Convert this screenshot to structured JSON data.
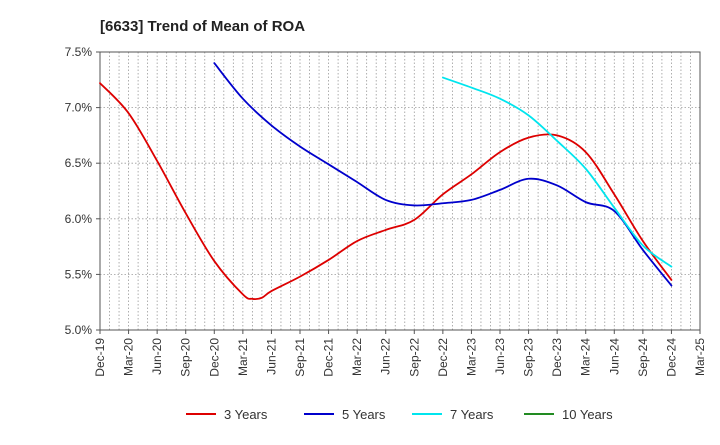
{
  "chart_data": {
    "type": "line",
    "title": "[6633]  Trend of Mean of ROA",
    "xlabel": "",
    "ylabel": "",
    "ylim": [
      5.0,
      7.5
    ],
    "yticks": [
      5.0,
      5.5,
      6.0,
      6.5,
      7.0,
      7.5
    ],
    "ytick_labels": [
      "5.0%",
      "5.5%",
      "6.0%",
      "6.5%",
      "7.0%",
      "7.5%"
    ],
    "x_labels": [
      "Dec-19",
      "Mar-20",
      "Jun-20",
      "Sep-20",
      "Dec-20",
      "Mar-21",
      "Jun-21",
      "Sep-21",
      "Dec-21",
      "Mar-22",
      "Jun-22",
      "Sep-22",
      "Dec-22",
      "Mar-23",
      "Jun-23",
      "Sep-23",
      "Dec-23",
      "Mar-24",
      "Jun-24",
      "Sep-24",
      "Dec-24",
      "Mar-25"
    ],
    "grid": true,
    "grid_style": "dotted",
    "legend_position": "bottom",
    "series": [
      {
        "name": "3 Years",
        "color": "#dd0000",
        "points": [
          [
            "Dec-19",
            7.22
          ],
          [
            "Mar-20",
            6.95
          ],
          [
            "Jun-20",
            6.52
          ],
          [
            "Sep-20",
            6.05
          ],
          [
            "Dec-20",
            5.62
          ],
          [
            "Mar-21",
            5.32
          ],
          [
            "Apr-21",
            5.28
          ],
          [
            "May-21",
            5.29
          ],
          [
            "Jun-21",
            5.35
          ],
          [
            "Sep-21",
            5.48
          ],
          [
            "Dec-21",
            5.63
          ],
          [
            "Mar-22",
            5.8
          ],
          [
            "Jun-22",
            5.9
          ],
          [
            "Sep-22",
            5.99
          ],
          [
            "Dec-22",
            6.22
          ],
          [
            "Mar-23",
            6.4
          ],
          [
            "Jun-23",
            6.6
          ],
          [
            "Sep-23",
            6.73
          ],
          [
            "Dec-23",
            6.75
          ],
          [
            "Mar-24",
            6.6
          ],
          [
            "Jun-24",
            6.22
          ],
          [
            "Sep-24",
            5.8
          ],
          [
            "Dec-24",
            5.45
          ]
        ]
      },
      {
        "name": "5 Years",
        "color": "#0000cc",
        "points": [
          [
            "Dec-20",
            7.4
          ],
          [
            "Mar-21",
            7.08
          ],
          [
            "Jun-21",
            6.84
          ],
          [
            "Sep-21",
            6.65
          ],
          [
            "Dec-21",
            6.49
          ],
          [
            "Mar-22",
            6.33
          ],
          [
            "Jun-22",
            6.17
          ],
          [
            "Sep-22",
            6.12
          ],
          [
            "Dec-22",
            6.14
          ],
          [
            "Mar-23",
            6.17
          ],
          [
            "Jun-23",
            6.26
          ],
          [
            "Sep-23",
            6.36
          ],
          [
            "Dec-23",
            6.3
          ],
          [
            "Mar-24",
            6.15
          ],
          [
            "Jun-24",
            6.07
          ],
          [
            "Sep-24",
            5.72
          ],
          [
            "Dec-24",
            5.4
          ]
        ]
      },
      {
        "name": "7 Years",
        "color": "#00e5ee",
        "points": [
          [
            "Dec-22",
            7.27
          ],
          [
            "Mar-23",
            7.18
          ],
          [
            "Jun-23",
            7.08
          ],
          [
            "Sep-23",
            6.93
          ],
          [
            "Dec-23",
            6.7
          ],
          [
            "Mar-24",
            6.45
          ],
          [
            "Jun-24",
            6.1
          ],
          [
            "Sep-24",
            5.76
          ],
          [
            "Dec-24",
            5.57
          ]
        ]
      },
      {
        "name": "10 Years",
        "color": "#228b22",
        "points": []
      }
    ]
  }
}
